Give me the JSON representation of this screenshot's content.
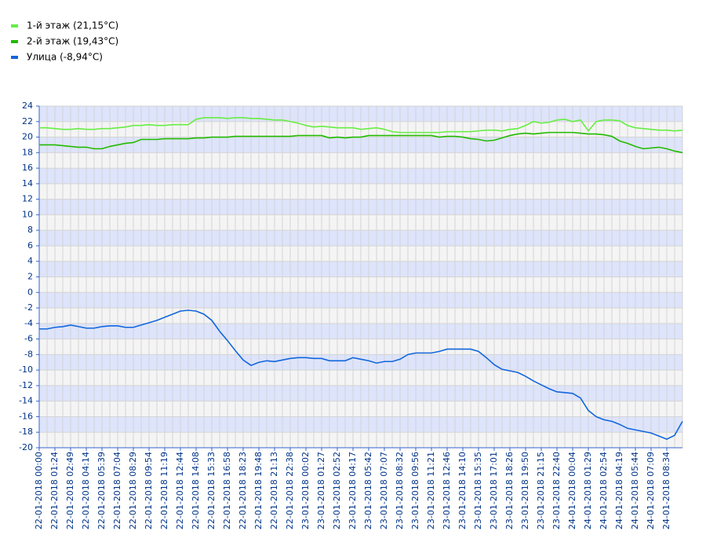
{
  "chart_data": {
    "type": "line",
    "categories": [
      "22-01-2018 00:00",
      null,
      "22-01-2018 01:24",
      null,
      "22-01-2018 02:49",
      null,
      "22-01-2018 04:14",
      null,
      "22-01-2018 05:39",
      null,
      "22-01-2018 07:04",
      null,
      "22-01-2018 08:29",
      null,
      "22-01-2018 09:54",
      null,
      "22-01-2018 11:19",
      null,
      "22-01-2018 12:44",
      null,
      "22-01-2018 14:08",
      null,
      "22-01-2018 15:33",
      null,
      "22-01-2018 16:58",
      null,
      "22-01-2018 18:23",
      null,
      "22-01-2018 19:48",
      null,
      "22-01-2018 21:13",
      null,
      "22-01-2018 22:38",
      null,
      "23-01-2018 00:02",
      null,
      "23-01-2018 01:27",
      null,
      "23-01-2018 02:52",
      null,
      "23-01-2018 04:17",
      null,
      "23-01-2018 05:42",
      null,
      "23-01-2018 07:07",
      null,
      "23-01-2018 08:32",
      null,
      "23-01-2018 09:56",
      null,
      "23-01-2018 11:21",
      null,
      "23-01-2018 12:46",
      null,
      "23-01-2018 14:10",
      null,
      "23-01-2018 15:35",
      null,
      "23-01-2018 17:01",
      null,
      "23-01-2018 18:26",
      null,
      "23-01-2018 19:50",
      null,
      "23-01-2018 21:15",
      null,
      "23-01-2018 22:40",
      null,
      "24-01-2018 00:04",
      null,
      "24-01-2018 01:29",
      null,
      "24-01-2018 02:54",
      null,
      "24-01-2018 04:19",
      null,
      "24-01-2018 05:44",
      null,
      "24-01-2018 07:09",
      null,
      "24-01-2018 08:34",
      null,
      null
    ],
    "series": [
      {
        "name": "1-й этаж (21,15°C)",
        "color": "#66ee44",
        "values": [
          21.2,
          21.2,
          21.1,
          21.0,
          21.0,
          21.1,
          21.0,
          21.0,
          21.1,
          21.1,
          21.2,
          21.3,
          21.5,
          21.5,
          21.6,
          21.5,
          21.5,
          21.6,
          21.6,
          21.6,
          22.3,
          22.5,
          22.5,
          22.5,
          22.4,
          22.5,
          22.5,
          22.4,
          22.4,
          22.3,
          22.2,
          22.2,
          22.0,
          21.8,
          21.5,
          21.3,
          21.4,
          21.3,
          21.2,
          21.2,
          21.2,
          21.0,
          21.1,
          21.2,
          21.0,
          20.7,
          20.6,
          20.6,
          20.6,
          20.6,
          20.6,
          20.6,
          20.7,
          20.7,
          20.7,
          20.7,
          20.8,
          20.9,
          20.9,
          20.8,
          21.0,
          21.1,
          21.5,
          22.0,
          21.8,
          21.9,
          22.2,
          22.3,
          22.0,
          22.2,
          20.8,
          22.0,
          22.2,
          22.2,
          22.1,
          21.5,
          21.2,
          21.1,
          21.0,
          20.9,
          20.9,
          20.8,
          20.9
        ]
      },
      {
        "name": "2-й этаж (19,43°C)",
        "color": "#22bb00",
        "values": [
          19.0,
          19.0,
          19.0,
          18.9,
          18.8,
          18.7,
          18.7,
          18.5,
          18.5,
          18.8,
          19.0,
          19.2,
          19.3,
          19.7,
          19.7,
          19.7,
          19.8,
          19.8,
          19.8,
          19.8,
          19.9,
          19.9,
          20.0,
          20.0,
          20.0,
          20.1,
          20.1,
          20.1,
          20.1,
          20.1,
          20.1,
          20.1,
          20.1,
          20.2,
          20.2,
          20.2,
          20.2,
          19.9,
          20.0,
          19.9,
          20.0,
          20.0,
          20.2,
          20.2,
          20.2,
          20.2,
          20.2,
          20.2,
          20.2,
          20.2,
          20.2,
          20.0,
          20.1,
          20.1,
          20.0,
          19.8,
          19.7,
          19.5,
          19.6,
          19.9,
          20.2,
          20.4,
          20.5,
          20.4,
          20.5,
          20.6,
          20.6,
          20.6,
          20.6,
          20.5,
          20.4,
          20.4,
          20.3,
          20.1,
          19.5,
          19.2,
          18.8,
          18.5,
          18.6,
          18.7,
          18.5,
          18.2,
          18.0
        ]
      },
      {
        "name": "Улица (-8,94°C)",
        "color": "#1166dd",
        "values": [
          -4.7,
          -4.7,
          -4.5,
          -4.4,
          -4.2,
          -4.4,
          -4.6,
          -4.6,
          -4.4,
          -4.3,
          -4.3,
          -4.5,
          -4.5,
          -4.2,
          -3.9,
          -3.6,
          -3.2,
          -2.8,
          -2.4,
          -2.3,
          -2.4,
          -2.8,
          -3.6,
          -5.0,
          -6.2,
          -7.5,
          -8.7,
          -9.4,
          -9.0,
          -8.8,
          -8.9,
          -8.7,
          -8.5,
          -8.4,
          -8.4,
          -8.5,
          -8.5,
          -8.8,
          -8.8,
          -8.8,
          -8.4,
          -8.6,
          -8.8,
          -9.1,
          -8.9,
          -8.9,
          -8.6,
          -8.0,
          -7.8,
          -7.8,
          -7.8,
          -7.6,
          -7.3,
          -7.3,
          -7.3,
          -7.3,
          -7.6,
          -8.4,
          -9.3,
          -9.9,
          -10.1,
          -10.3,
          -10.8,
          -11.4,
          -11.9,
          -12.4,
          -12.8,
          -12.9,
          -13.0,
          -13.6,
          -15.2,
          -16.0,
          -16.4,
          -16.6,
          -17.0,
          -17.5,
          -17.7,
          -17.9,
          -18.1,
          -18.5,
          -18.9,
          -18.4,
          -16.6
        ]
      }
    ],
    "ylim": [
      -20,
      24
    ],
    "yticks": [
      -20,
      -18,
      -16,
      -14,
      -12,
      -10,
      -8,
      -6,
      -4,
      -2,
      0,
      2,
      4,
      6,
      8,
      10,
      12,
      14,
      16,
      18,
      20,
      22,
      24
    ],
    "grid": true,
    "legend": "top-left"
  }
}
